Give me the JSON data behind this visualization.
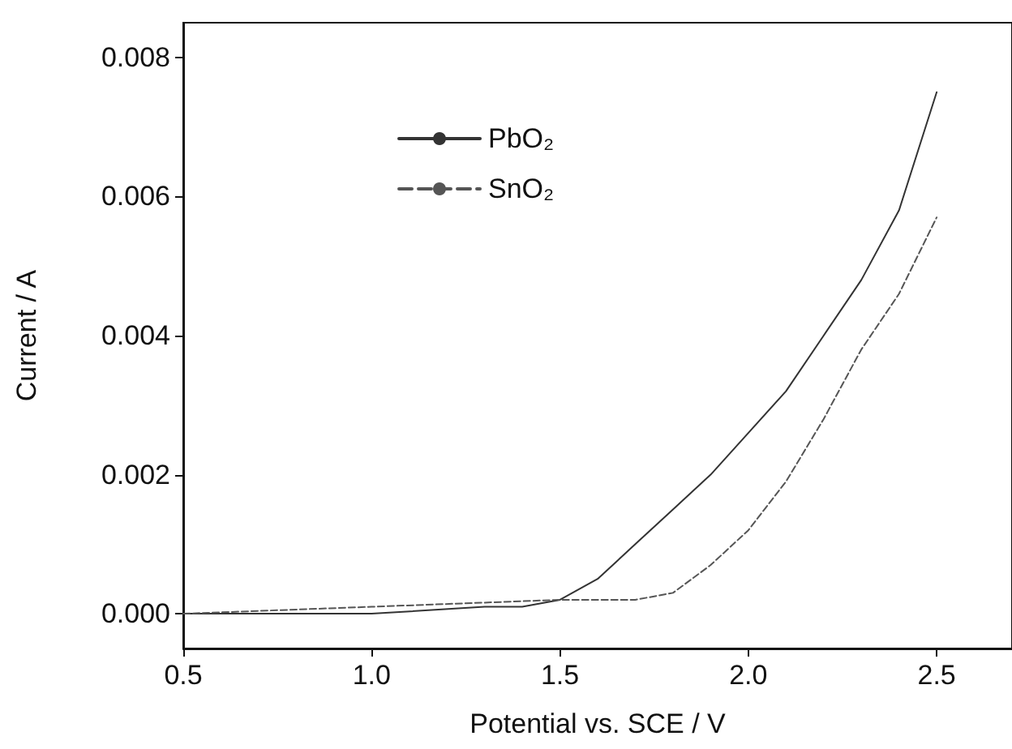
{
  "chart_data": {
    "type": "line",
    "xlabel": "Potential vs. SCE / V",
    "ylabel": "Current / A",
    "xlim": [
      0.5,
      2.7
    ],
    "xticks": [
      0.5,
      {
        "value": 1,
        "label": "1.0"
      },
      1.5,
      {
        "value": 2,
        "label": "2.0"
      },
      2.5
    ],
    "ylim": [
      -0.0005,
      0.0085
    ],
    "yticks": [
      {
        "value": 0,
        "label": "0.000"
      },
      0.002,
      0.004,
      0.006,
      0.008
    ],
    "grid": false,
    "legend": "top left",
    "marker": "none",
    "series": [
      {
        "name": "PbO₂",
        "color": "#333333",
        "line_style": "solid",
        "x": [
          0.5,
          1.0,
          1.3,
          1.4,
          1.5,
          1.6,
          1.7,
          1.8,
          1.9,
          2.0,
          2.1,
          2.2,
          2.3,
          2.4,
          2.5
        ],
        "values": [
          0,
          0,
          0.0001,
          0.0001,
          0.0002,
          0.0005,
          0.001,
          0.0015,
          0.002,
          0.0026,
          0.0032,
          0.004,
          0.0048,
          0.0058,
          0.0075
        ]
      },
      {
        "name": "SnO₂",
        "color": "#555555",
        "line_style": "dashed",
        "x": [
          0.5,
          1.0,
          1.5,
          1.7,
          1.8,
          1.9,
          2.0,
          2.1,
          2.2,
          2.3,
          2.4,
          2.5
        ],
        "values": [
          0,
          0.0001,
          0.0002,
          0.0002,
          0.0003,
          0.0007,
          0.0012,
          0.0019,
          0.0028,
          0.0038,
          0.0046,
          0.0057
        ]
      }
    ]
  }
}
